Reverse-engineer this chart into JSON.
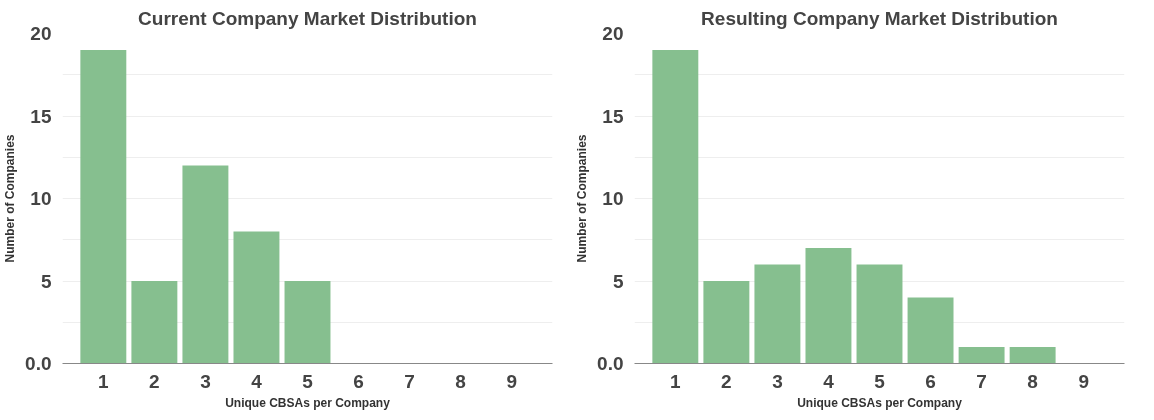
{
  "chart_data": [
    {
      "type": "bar",
      "title": "Current Company Market Distribution",
      "xlabel": "Unique CBSAs per Company",
      "ylabel": "Number of Companies",
      "categories": [
        "1",
        "2",
        "3",
        "4",
        "5",
        "6",
        "7",
        "8",
        "9"
      ],
      "values": [
        19,
        5,
        12,
        8,
        5,
        0,
        0,
        0,
        0
      ],
      "color": "#86bf8f",
      "ylim": [
        0,
        20
      ],
      "yticks": [
        {
          "value": 0,
          "label": "0.0"
        },
        {
          "value": 2.5,
          "label": null
        },
        5,
        {
          "value": 7.5,
          "label": null
        },
        10,
        {
          "value": 12.5,
          "label": null
        },
        15,
        {
          "value": 17.5,
          "label": null
        },
        20
      ],
      "grid": "y"
    },
    {
      "type": "bar",
      "title": "Resulting Company Market Distribution",
      "xlabel": "Unique CBSAs per Company",
      "ylabel": "Number of Companies",
      "categories": [
        "1",
        "2",
        "3",
        "4",
        "5",
        "6",
        "7",
        "8",
        "9"
      ],
      "values": [
        19,
        5,
        6,
        7,
        6,
        4,
        1,
        1,
        0
      ],
      "color": "#86bf8f",
      "ylim": [
        0,
        20
      ],
      "yticks": [
        {
          "value": 0,
          "label": "0.0"
        },
        {
          "value": 2.5,
          "label": null
        },
        5,
        {
          "value": 7.5,
          "label": null
        },
        10,
        {
          "value": 12.5,
          "label": null
        },
        15,
        {
          "value": 17.5,
          "label": null
        },
        20
      ],
      "grid": "y"
    }
  ]
}
